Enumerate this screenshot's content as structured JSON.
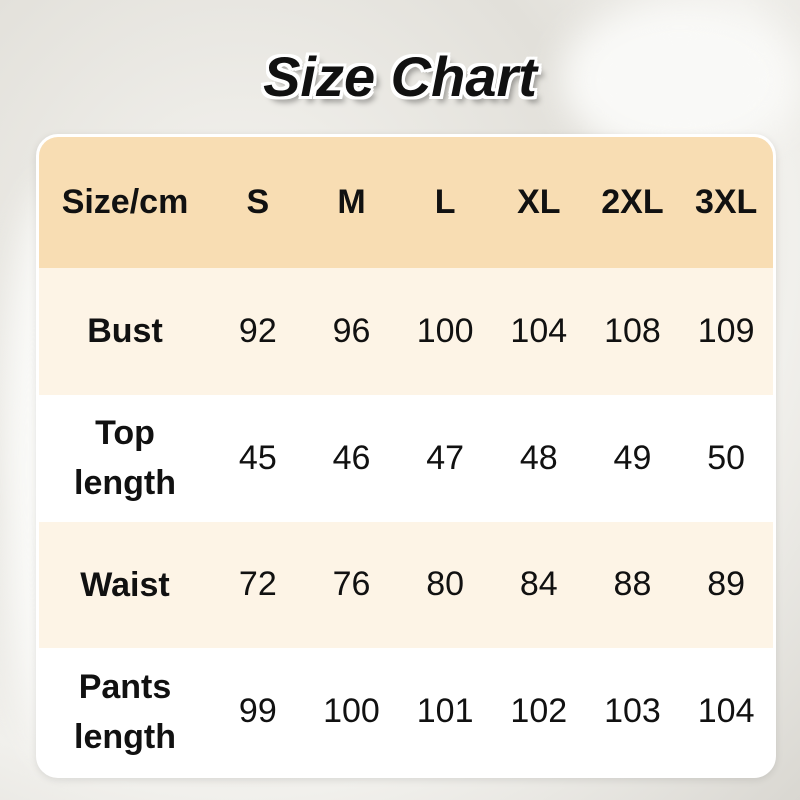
{
  "title": "Size Chart",
  "colors": {
    "header": "#f8ddb3",
    "row_alt": "#fdf4e6",
    "row": "#ffffff"
  },
  "chart_data": {
    "type": "table",
    "header_label": "Size/cm",
    "columns": [
      "S",
      "M",
      "L",
      "XL",
      "2XL",
      "3XL"
    ],
    "rows": [
      {
        "label": "Bust",
        "values": [
          "92",
          "96",
          "100",
          "104",
          "108",
          "109"
        ]
      },
      {
        "label": "Top length",
        "values": [
          "45",
          "46",
          "47",
          "48",
          "49",
          "50"
        ]
      },
      {
        "label": "Waist",
        "values": [
          "72",
          "76",
          "80",
          "84",
          "88",
          "89"
        ]
      },
      {
        "label": "Pants length",
        "values": [
          "99",
          "100",
          "101",
          "102",
          "103",
          "104"
        ]
      }
    ]
  }
}
